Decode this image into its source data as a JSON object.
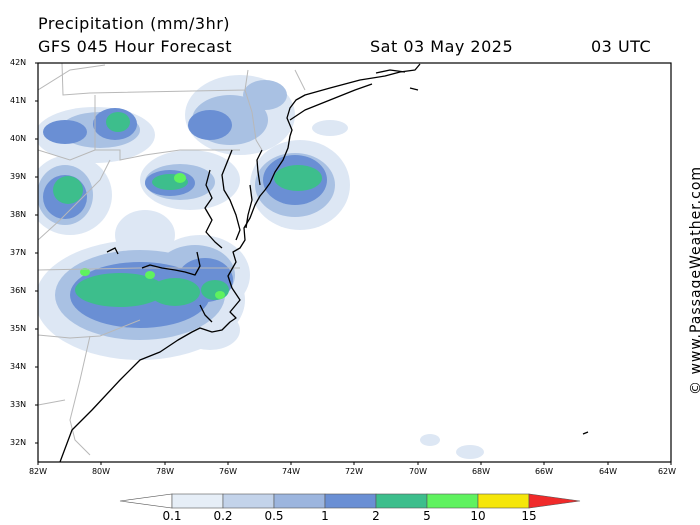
{
  "header": {
    "title": "Precipitation (mm/3hr)",
    "model": "GFS 045 Hour Forecast",
    "date": "Sat 03 May 2025",
    "time": "03 UTC"
  },
  "credit": "© www.PassageWeather.com",
  "lat_labels": [
    "42N",
    "41N",
    "40N",
    "39N",
    "38N",
    "37N",
    "36N",
    "35N",
    "34N",
    "33N",
    "32N"
  ],
  "lon_labels": [
    "82W",
    "80W",
    "78W",
    "76W",
    "74W",
    "72W",
    "70W",
    "68W",
    "66W",
    "64W",
    "62W"
  ],
  "colorbar": {
    "labels": [
      "0.1",
      "0.2",
      "0.5",
      "1",
      "2",
      "5",
      "10",
      "15"
    ],
    "colors": [
      "#e6eef7",
      "#c3d3ea",
      "#9cb5de",
      "#6a8fd4",
      "#3dbe8c",
      "#5ff25f",
      "#f5e60a",
      "#f5a014",
      "#f02a2a"
    ]
  }
}
